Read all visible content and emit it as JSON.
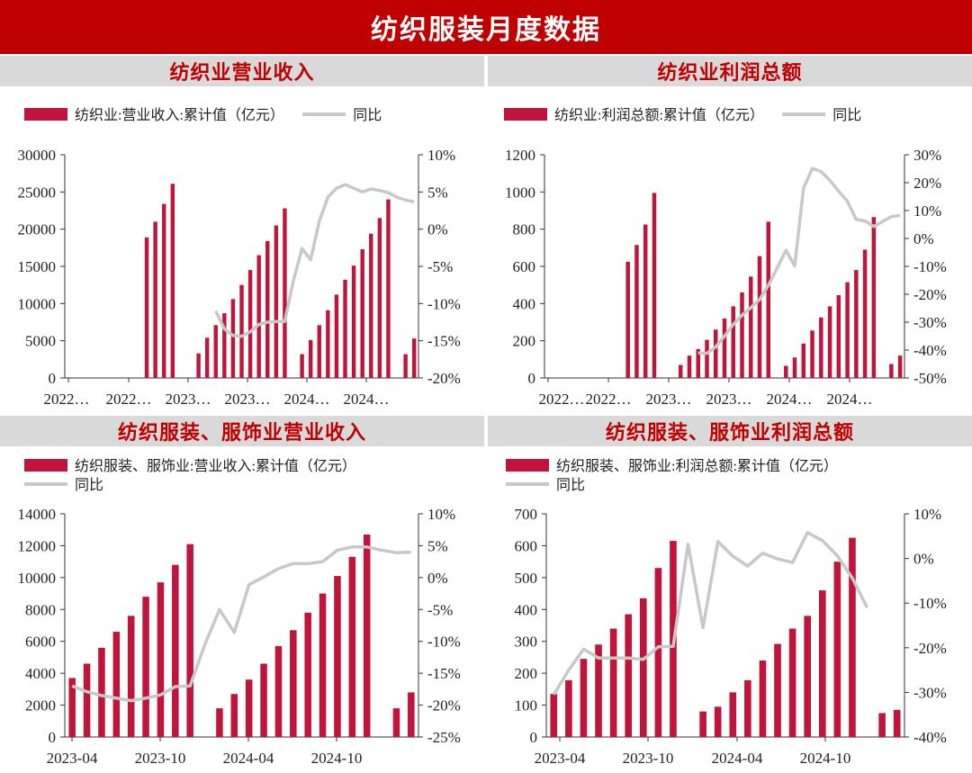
{
  "page_title": "纺织服装月度数据",
  "colors": {
    "bar": "#c0143c",
    "line": "#c8c8c8",
    "banner": "#c00000",
    "title_bg": "#d9d9d9"
  },
  "chart_data": [
    {
      "type": "bar",
      "title": "纺织业营业收入",
      "legend": {
        "bar_label": "纺织业:营业收入:累计值（亿元）",
        "line_label": "同比",
        "placement": "top"
      },
      "x_tick_labels": [
        "2022…",
        "2022…",
        "2023…",
        "2023…",
        "2024…",
        "2024…"
      ],
      "left_axis": {
        "min": 0,
        "max": 30000,
        "ticks": [
          "0",
          "5000",
          "10000",
          "15000",
          "20000",
          "25000",
          "30000"
        ]
      },
      "right_axis": {
        "min": -20,
        "max": 10,
        "ticks": [
          "-20%",
          "-15%",
          "-10%",
          "-5%",
          "0%",
          "5%",
          "10%"
        ]
      },
      "bars": [
        null,
        null,
        null,
        null,
        null,
        null,
        null,
        null,
        null,
        18900,
        21000,
        23400,
        26100,
        null,
        null,
        3300,
        5400,
        7100,
        8700,
        10600,
        12500,
        14500,
        16500,
        18400,
        20500,
        22800,
        null,
        3200,
        5100,
        7100,
        9100,
        11200,
        13200,
        15100,
        17300,
        19400,
        21500,
        24000,
        null,
        3200,
        5300
      ],
      "yoy": [
        null,
        null,
        null,
        null,
        null,
        null,
        null,
        null,
        null,
        null,
        null,
        null,
        null,
        null,
        null,
        null,
        null,
        -11.0,
        -13.4,
        -14.3,
        -14.4,
        -13.8,
        -12.8,
        -12.5,
        -12.4,
        -12.4,
        -6.9,
        -2.6,
        -4.1,
        1.1,
        4.3,
        5.5,
        6.0,
        5.5,
        5.0,
        5.4,
        5.2,
        4.9,
        4.3,
        3.9,
        3.7
      ]
    },
    {
      "type": "bar",
      "title": "纺织业利润总额",
      "legend": {
        "bar_label": "纺织业:利润总额:累计值（亿元）",
        "line_label": "同比",
        "placement": "top"
      },
      "x_tick_labels": [
        "2022…",
        "2022…",
        "2023…",
        "2023…",
        "2024…",
        "2024…"
      ],
      "left_axis": {
        "min": 0,
        "max": 1200,
        "ticks": [
          "0",
          "200",
          "400",
          "600",
          "800",
          "1000",
          "1200"
        ]
      },
      "right_axis": {
        "min": -50,
        "max": 30,
        "ticks": [
          "-50%",
          "-40%",
          "-30%",
          "-20%",
          "-10%",
          "0%",
          "10%",
          "20%",
          "30%"
        ]
      },
      "bars": [
        null,
        null,
        null,
        null,
        null,
        null,
        null,
        null,
        null,
        625,
        715,
        825,
        995,
        null,
        null,
        70,
        120,
        155,
        205,
        260,
        320,
        385,
        460,
        545,
        655,
        840,
        null,
        65,
        110,
        185,
        255,
        325,
        385,
        445,
        515,
        580,
        690,
        865,
        null,
        75,
        120
      ],
      "yoy": [
        null,
        null,
        null,
        null,
        null,
        null,
        null,
        null,
        null,
        null,
        null,
        null,
        null,
        null,
        null,
        null,
        null,
        -41.0,
        -41.2,
        -38.9,
        -35.0,
        -30.8,
        -27.5,
        -24.8,
        -21.9,
        -16.8,
        -10.6,
        -4.2,
        -9.8,
        18.0,
        25.1,
        24.0,
        20.8,
        17.0,
        13.3,
        6.8,
        6.3,
        4.3,
        6.1,
        7.8,
        8.3
      ]
    },
    {
      "type": "bar",
      "title": "纺织服装、服饰业营业收入",
      "legend": {
        "bar_label": "纺织服装、服饰业:营业收入:累计值（亿元）",
        "line_label": "同比",
        "placement": "top"
      },
      "x_tick_labels": [
        "2023-04",
        "2023-10",
        "2024-04",
        "2024-10"
      ],
      "left_axis": {
        "min": 0,
        "max": 14000,
        "ticks": [
          "0",
          "2000",
          "4000",
          "6000",
          "8000",
          "10000",
          "12000",
          "14000"
        ]
      },
      "right_axis": {
        "min": -25,
        "max": 10,
        "ticks": [
          "-25%",
          "-20%",
          "-15%",
          "-10%",
          "-5%",
          "0%",
          "5%",
          "10%"
        ]
      },
      "bars": [
        3700,
        4600,
        5600,
        6600,
        7600,
        8800,
        9700,
        10800,
        12100,
        null,
        1800,
        2700,
        3600,
        4600,
        5700,
        6700,
        7800,
        9000,
        10100,
        11300,
        12700,
        null,
        1800,
        2800
      ],
      "yoy": [
        -17.0,
        -17.9,
        -18.5,
        -18.9,
        -19.3,
        -18.9,
        -18.4,
        -17.1,
        -17.0,
        -10.5,
        -5.0,
        -8.6,
        -1.1,
        0.1,
        1.4,
        2.2,
        2.2,
        2.5,
        4.3,
        4.8,
        4.8,
        4.3,
        3.9,
        4.0
      ]
    },
    {
      "type": "bar",
      "title": "纺织服装、服饰业利润总额",
      "legend": {
        "bar_label": "纺织服装、服饰业:利润总额:累计值（亿元）",
        "line_label": "同比",
        "placement": "top"
      },
      "x_tick_labels": [
        "2023-04",
        "2023-10",
        "2024-04",
        "2024-10"
      ],
      "left_axis": {
        "min": 0,
        "max": 700,
        "ticks": [
          "0",
          "100",
          "200",
          "300",
          "400",
          "500",
          "600",
          "700"
        ]
      },
      "right_axis": {
        "min": -40,
        "max": 10,
        "ticks": [
          "-40%",
          "-30%",
          "-20%",
          "-10%",
          "0%",
          "10%"
        ]
      },
      "bars": [
        135,
        178,
        245,
        290,
        340,
        385,
        435,
        530,
        615,
        null,
        80,
        95,
        140,
        178,
        240,
        292,
        340,
        380,
        460,
        550,
        625,
        null,
        75,
        85
      ],
      "yoy": [
        -30.5,
        -25.0,
        -20.3,
        -22.3,
        -22.3,
        -22.3,
        -22.6,
        -19.8,
        -19.7,
        3.2,
        -15.5,
        3.8,
        0.5,
        -1.7,
        1.2,
        -0.1,
        -0.9,
        5.8,
        4.0,
        0.6,
        -4.4,
        -11.0,
        null,
        null
      ]
    }
  ]
}
